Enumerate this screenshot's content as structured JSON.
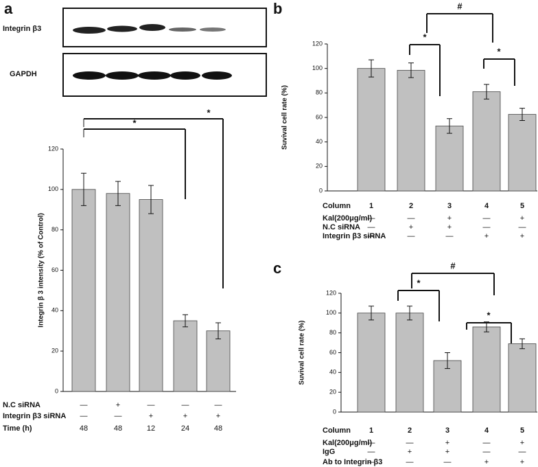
{
  "chart_data": [
    {
      "type": "bar",
      "panel": "a",
      "blot_labels": [
        "Integrin β3",
        "GAPDH"
      ],
      "ylabel": "Integrin β 3 intensity (% of Control)",
      "values": [
        100,
        98,
        95,
        35,
        30
      ],
      "errors": [
        8,
        6,
        7,
        3,
        4
      ],
      "color": "#c0c0c0",
      "ylim": [
        0,
        120
      ],
      "yticks": [
        0,
        20,
        40,
        60,
        80,
        100,
        120
      ],
      "conditions": [
        {
          "label": "N.C siRNA",
          "marks": [
            "—",
            "+",
            "—",
            "—",
            "—"
          ]
        },
        {
          "label": "Integrin β3 siRNA",
          "marks": [
            "—",
            "—",
            "+",
            "+",
            "+"
          ]
        },
        {
          "label": "Time (h)",
          "marks": [
            "48",
            "48",
            "12",
            "24",
            "48"
          ]
        }
      ],
      "annotations": [
        "*",
        "*"
      ]
    },
    {
      "type": "bar",
      "panel": "b",
      "ylabel": "Suvival cell rate (%)",
      "category_label": "Column",
      "categories": [
        "1",
        "2",
        "3",
        "4",
        "5"
      ],
      "values": [
        100,
        98.5,
        53,
        81,
        62.5
      ],
      "errors": [
        7,
        6,
        6,
        6,
        5
      ],
      "color": "#c0c0c0",
      "ylim": [
        0,
        120
      ],
      "yticks": [
        0,
        20,
        40,
        60,
        80,
        100,
        120
      ],
      "conditions": [
        {
          "label": "Kal(200μg/ml)",
          "marks": [
            "—",
            "—",
            "+",
            "—",
            "+"
          ]
        },
        {
          "label": "N.C siRNA",
          "marks": [
            "—",
            "+",
            "+",
            "—",
            "—"
          ]
        },
        {
          "label": "Integrin β3 siRNA",
          "marks": [
            "—",
            "—",
            "—",
            "+",
            "+"
          ]
        }
      ],
      "annotations": [
        "*",
        "#",
        "*"
      ]
    },
    {
      "type": "bar",
      "panel": "c",
      "ylabel": "Suvival cell rate (%)",
      "category_label": "Column",
      "categories": [
        "1",
        "2",
        "3",
        "4",
        "5"
      ],
      "values": [
        100,
        100,
        52,
        86,
        69
      ],
      "errors": [
        7,
        7,
        8,
        5,
        5
      ],
      "color": "#c0c0c0",
      "ylim": [
        0,
        120
      ],
      "yticks": [
        0,
        20,
        40,
        60,
        80,
        100,
        120
      ],
      "conditions": [
        {
          "label": "Kal(200μg/ml)",
          "marks": [
            "—",
            "—",
            "+",
            "—",
            "+"
          ]
        },
        {
          "label": "IgG",
          "marks": [
            "—",
            "+",
            "+",
            "—",
            "—"
          ]
        },
        {
          "label": "Ab to Integrin β3",
          "marks": [
            "—",
            "—",
            "—",
            "+",
            "+"
          ]
        }
      ],
      "annotations": [
        "*",
        "#",
        "*"
      ]
    }
  ]
}
